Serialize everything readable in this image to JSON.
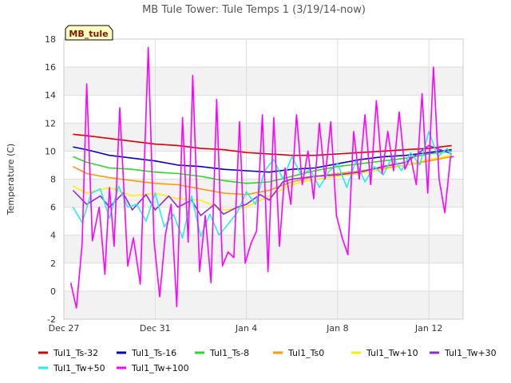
{
  "chart_data": {
    "type": "line",
    "title": "MB Tule Tower: Tule Temps 1 (3/19/14-now)",
    "badge": "MB_tule",
    "ylabel": "Temperature (C)",
    "xlabel": "",
    "ylim": [
      -2,
      18
    ],
    "yticks": [
      -2,
      0,
      2,
      4,
      6,
      8,
      10,
      12,
      14,
      16,
      18
    ],
    "xlim": [
      0,
      17.5
    ],
    "xticks": [
      {
        "label": "Dec 27",
        "x": 0
      },
      {
        "label": "Dec 31",
        "x": 4
      },
      {
        "label": "Jan 4",
        "x": 8
      },
      {
        "label": "Jan 8",
        "x": 12
      },
      {
        "label": "Jan 12",
        "x": 16
      }
    ],
    "grid": true,
    "legend_position": "bottom",
    "series": [
      {
        "name": "Tul1_Ts-32",
        "color": "#dd0000",
        "x": [
          0.4,
          1,
          2,
          3,
          4,
          5,
          6,
          7,
          8,
          9,
          10,
          11,
          12,
          13,
          14,
          15,
          16,
          17
        ],
        "y": [
          11.2,
          11.1,
          10.9,
          10.7,
          10.5,
          10.4,
          10.2,
          10.1,
          9.9,
          9.8,
          9.7,
          9.7,
          9.8,
          9.9,
          10.0,
          10.1,
          10.2,
          10.4
        ]
      },
      {
        "name": "Tul1_Ts-16",
        "color": "#0000cc",
        "x": [
          0.4,
          1,
          2,
          3,
          4,
          5,
          6,
          7,
          8,
          9,
          10,
          11,
          12,
          13,
          14,
          15,
          16,
          17
        ],
        "y": [
          10.3,
          10.1,
          9.7,
          9.5,
          9.3,
          9.0,
          8.9,
          8.7,
          8.6,
          8.5,
          8.7,
          8.8,
          9.1,
          9.4,
          9.6,
          9.7,
          9.9,
          10.1
        ]
      },
      {
        "name": "Tul1_Ts-8",
        "color": "#22dd22",
        "x": [
          0.4,
          1,
          2,
          3,
          4,
          5,
          6,
          7,
          8,
          9,
          10,
          11,
          12,
          13,
          14,
          15,
          16,
          17
        ],
        "y": [
          9.6,
          9.2,
          8.8,
          8.7,
          8.5,
          8.4,
          8.2,
          7.9,
          7.7,
          7.8,
          8.2,
          8.6,
          8.9,
          9.1,
          9.3,
          9.5,
          9.8,
          10.0
        ]
      },
      {
        "name": "Tul1_Ts0",
        "color": "#ff9900",
        "x": [
          0.4,
          1,
          2,
          3,
          4,
          5,
          6,
          7,
          8,
          9,
          10,
          11,
          12,
          13,
          14,
          15,
          16,
          17
        ],
        "y": [
          8.9,
          8.4,
          8.1,
          7.9,
          7.7,
          7.6,
          7.3,
          7.0,
          6.9,
          7.2,
          7.8,
          8.2,
          8.4,
          8.6,
          8.8,
          9.0,
          9.3,
          9.6
        ]
      },
      {
        "name": "Tul1_Tw+10",
        "color": "#ffee00",
        "x": [
          0.4,
          1,
          2,
          3,
          4,
          5,
          6,
          7,
          8,
          9,
          10,
          11,
          12,
          13,
          14,
          15,
          16,
          17
        ],
        "y": [
          7.5,
          7.0,
          7.4,
          6.8,
          7.0,
          6.6,
          6.5,
          5.8,
          6.0,
          6.8,
          7.6,
          8.0,
          8.2,
          8.4,
          8.7,
          9.0,
          9.4,
          9.7
        ]
      },
      {
        "name": "Tul1_Tw+30",
        "color": "#8a2be2",
        "x": [
          0.4,
          1,
          1.6,
          2,
          2.6,
          3,
          3.6,
          4,
          4.6,
          5,
          5.6,
          6,
          6.6,
          7,
          7.6,
          8,
          8.6,
          9,
          9.6,
          10,
          11,
          12,
          13,
          14,
          15,
          16,
          17
        ],
        "y": [
          7.2,
          6.2,
          6.8,
          6.0,
          7.0,
          5.8,
          6.9,
          5.8,
          6.8,
          6.0,
          6.5,
          5.4,
          6.2,
          5.5,
          6.0,
          6.2,
          6.9,
          6.5,
          7.8,
          8.0,
          8.2,
          8.3,
          8.5,
          8.9,
          9.2,
          10.4,
          9.8
        ]
      },
      {
        "name": "Tul1_Tw+50",
        "color": "#22eeee",
        "x": [
          0.4,
          0.8,
          1.2,
          1.6,
          2,
          2.4,
          2.8,
          3.2,
          3.6,
          4,
          4.4,
          4.8,
          5.2,
          5.6,
          6,
          6.4,
          6.8,
          7.2,
          7.6,
          8,
          8.4,
          8.8,
          9.2,
          9.6,
          10,
          10.4,
          10.8,
          11.2,
          11.6,
          12,
          12.4,
          12.8,
          13.2,
          13.6,
          14,
          14.4,
          14.8,
          15.2,
          15.6,
          16,
          16.4,
          16.8,
          17
        ],
        "y": [
          6.0,
          4.9,
          7.0,
          7.3,
          5.2,
          7.5,
          6.0,
          6.2,
          5.0,
          7.0,
          4.6,
          5.5,
          3.8,
          6.8,
          3.9,
          5.5,
          4.0,
          4.8,
          5.6,
          7.1,
          6.2,
          8.6,
          9.4,
          8.0,
          9.6,
          8.3,
          8.7,
          7.4,
          8.5,
          9.1,
          7.4,
          9.3,
          7.8,
          8.9,
          8.3,
          9.6,
          8.6,
          9.9,
          9.0,
          11.4,
          9.6,
          10.2,
          9.6
        ]
      },
      {
        "name": "Tul1_Tw+100",
        "color": "#ff00ff",
        "x": [
          0.3,
          0.55,
          0.8,
          1.0,
          1.25,
          1.55,
          1.8,
          2.0,
          2.2,
          2.45,
          2.8,
          3.05,
          3.35,
          3.7,
          3.95,
          4.2,
          4.45,
          4.7,
          4.95,
          5.2,
          5.45,
          5.65,
          5.95,
          6.2,
          6.45,
          6.7,
          6.95,
          7.2,
          7.45,
          7.7,
          7.95,
          8.2,
          8.45,
          8.7,
          8.95,
          9.2,
          9.45,
          9.7,
          9.95,
          10.2,
          10.45,
          10.7,
          10.95,
          11.2,
          11.45,
          11.7,
          11.95,
          12.2,
          12.45,
          12.7,
          12.95,
          13.2,
          13.45,
          13.7,
          13.95,
          14.2,
          14.45,
          14.7,
          14.95,
          15.2,
          15.45,
          15.7,
          15.95,
          16.2,
          16.45,
          16.7,
          16.95,
          17.1
        ],
        "y": [
          0.6,
          -1.2,
          3.4,
          14.8,
          3.6,
          6.0,
          1.2,
          7.4,
          3.2,
          13.1,
          1.8,
          3.8,
          0.5,
          17.4,
          3.6,
          -0.4,
          4.0,
          6.2,
          -1.1,
          12.4,
          3.5,
          15.4,
          1.4,
          5.4,
          0.6,
          13.7,
          1.8,
          2.8,
          2.4,
          12.1,
          2.0,
          3.4,
          4.3,
          12.6,
          1.4,
          12.4,
          3.2,
          8.8,
          6.2,
          12.6,
          7.6,
          10.0,
          6.6,
          12.0,
          8.0,
          12.1,
          5.4,
          3.8,
          2.6,
          11.4,
          8.0,
          12.6,
          7.6,
          13.6,
          8.4,
          11.4,
          8.6,
          12.8,
          8.7,
          9.6,
          7.6,
          14.1,
          7.0,
          16.0,
          8.0,
          5.6,
          9.6,
          9.6
        ]
      }
    ]
  }
}
